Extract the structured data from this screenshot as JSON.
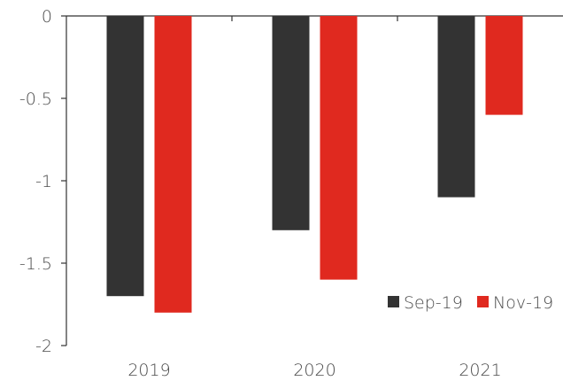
{
  "chart_data": {
    "type": "bar",
    "title": "",
    "xlabel": "",
    "ylabel": "",
    "categories": [
      "2019",
      "2020",
      "2021"
    ],
    "series": [
      {
        "name": "Sep-19",
        "color": "#333333",
        "values": [
          -1.7,
          -1.3,
          -1.1
        ]
      },
      {
        "name": "Nov-19",
        "color": "#e0291f",
        "values": [
          -1.8,
          -1.6,
          -0.6
        ]
      }
    ],
    "ylim": [
      -2,
      0
    ],
    "yticks": [
      0,
      -0.5,
      -1,
      -1.5,
      -2
    ],
    "ytick_labels": [
      "0",
      "-0.5",
      "-1",
      "-1.5",
      "-2"
    ],
    "grid": false,
    "legend_position": "bottom-right"
  }
}
